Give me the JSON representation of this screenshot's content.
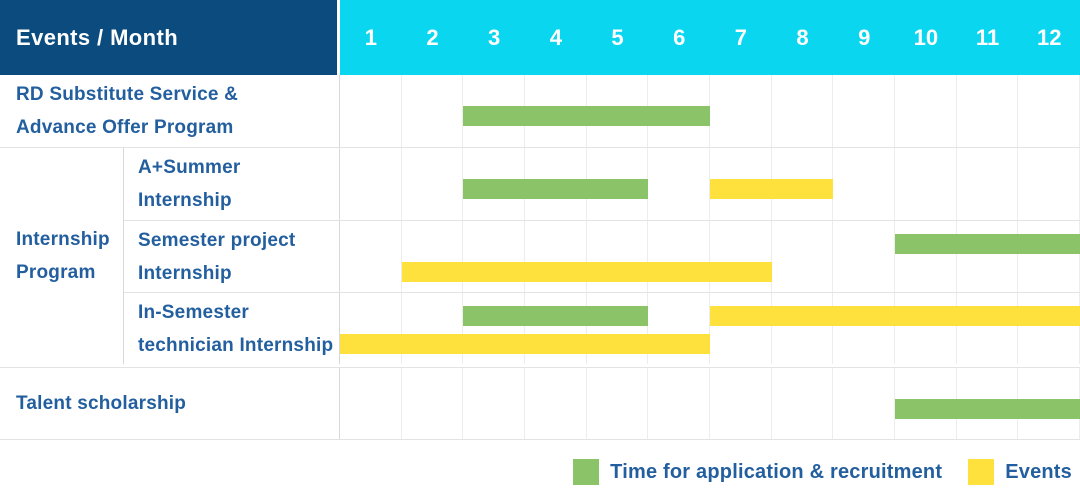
{
  "header": {
    "title": "Events / Month",
    "months": [
      "1",
      "2",
      "3",
      "4",
      "5",
      "6",
      "7",
      "8",
      "9",
      "10",
      "11",
      "12"
    ]
  },
  "colors": {
    "navy": "#0b4b7e",
    "cyan": "#0ad6ef",
    "green": "#8bc368",
    "yellow": "#ffe13e",
    "label_blue": "#235f9f"
  },
  "chart_data": {
    "type": "gantt",
    "title": "Events / Month",
    "x_axis": {
      "label": "Month",
      "ticks": [
        1,
        2,
        3,
        4,
        5,
        6,
        7,
        8,
        9,
        10,
        11,
        12
      ],
      "range": [
        1,
        12
      ]
    },
    "grid": true,
    "legend_position": "bottom-right",
    "series_legend": [
      {
        "name": "Time for application & recruitment",
        "color": "#8bc368"
      },
      {
        "name": "Events",
        "color": "#ffe13e"
      }
    ],
    "group_label": "Internship Program",
    "group_label_lines": [
      "Internship",
      "Program"
    ],
    "rows": [
      {
        "group": null,
        "label": "RD Substitute Service & Advance Offer Program",
        "label_lines": [
          "RD Substitute Service &",
          "Advance Offer Program"
        ],
        "bars": [
          {
            "series": "Time for application & recruitment",
            "color": "green",
            "start_month": 3,
            "end_month": 6,
            "track": "single"
          }
        ]
      },
      {
        "group": "Internship Program",
        "label": "A+Summer Internship",
        "label_lines": [
          "A+Summer",
          "Internship"
        ],
        "bars": [
          {
            "series": "Time for application & recruitment",
            "color": "green",
            "start_month": 3,
            "end_month": 5,
            "track": "single"
          },
          {
            "series": "Events",
            "color": "yellow",
            "start_month": 7,
            "end_month": 8,
            "track": "single"
          }
        ]
      },
      {
        "group": "Internship Program",
        "label": "Semester project Internship",
        "label_lines": [
          "Semester project",
          "Internship"
        ],
        "bars": [
          {
            "series": "Time for application & recruitment",
            "color": "green",
            "start_month": 10,
            "end_month": 12,
            "track": "upper"
          },
          {
            "series": "Events",
            "color": "yellow",
            "start_month": 2,
            "end_month": 7,
            "track": "lower"
          }
        ]
      },
      {
        "group": "Internship Program",
        "label": "In-Semester technician Internship",
        "label_lines": [
          "In-Semester",
          "technician Internship"
        ],
        "bars": [
          {
            "series": "Time for application & recruitment",
            "color": "green",
            "start_month": 3,
            "end_month": 5,
            "track": "upper"
          },
          {
            "series": "Events",
            "color": "yellow",
            "start_month": 7,
            "end_month": 12,
            "track": "upper"
          },
          {
            "series": "Events",
            "color": "yellow",
            "start_month": 1,
            "end_month": 6,
            "track": "lower"
          }
        ]
      },
      {
        "group": null,
        "label": "Talent scholarship",
        "label_lines": [
          "Talent scholarship"
        ],
        "bars": [
          {
            "series": "Time for application & recruitment",
            "color": "green",
            "start_month": 10,
            "end_month": 12,
            "track": "single"
          }
        ]
      }
    ]
  },
  "legend": {
    "items": [
      {
        "swatch": "green",
        "label": "Time for application & recruitment"
      },
      {
        "swatch": "yellow",
        "label": "Events"
      }
    ]
  }
}
